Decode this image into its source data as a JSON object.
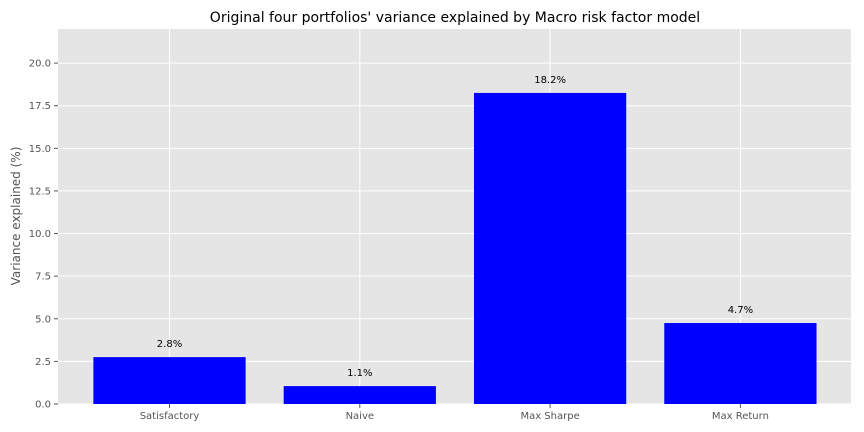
{
  "chart_data": {
    "type": "bar",
    "title": "Original four portfolios' variance explained by Macro risk factor model",
    "xlabel": "",
    "ylabel": "Variance explained (%)",
    "categories": [
      "Satisfactory",
      "Naive",
      "Max Sharpe",
      "Max Return"
    ],
    "values": [
      2.75,
      1.05,
      18.25,
      4.75
    ],
    "data_labels": [
      "2.8%",
      "1.1%",
      "18.2%",
      "4.7%"
    ],
    "ylim": [
      0,
      22
    ],
    "yticks": [
      0.0,
      2.5,
      5.0,
      7.5,
      10.0,
      12.5,
      15.0,
      17.5,
      20.0
    ],
    "ytick_labels": [
      "0.0",
      "2.5",
      "5.0",
      "7.5",
      "10.0",
      "12.5",
      "15.0",
      "17.5",
      "20.0"
    ],
    "grid": true,
    "legend": "none",
    "colors": {
      "bar": "#0000ff",
      "plot_background": "#e5e5e5",
      "grid": "#ffffff"
    }
  }
}
